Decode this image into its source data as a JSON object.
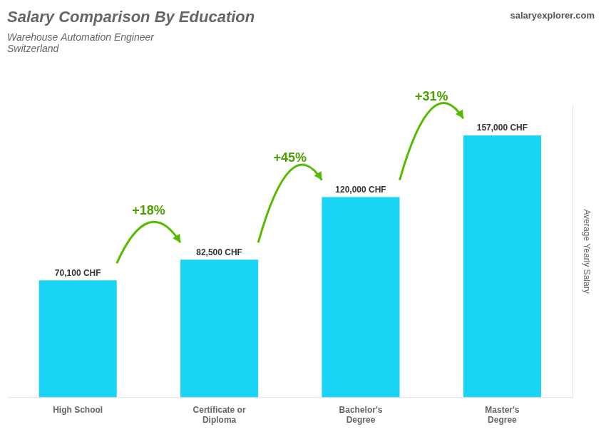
{
  "chart_data": {
    "type": "bar",
    "title": "Salary Comparison By Education",
    "subtitle": [
      "Warehouse Automation Engineer",
      "Switzerland"
    ],
    "source": "salaryexplorer.com",
    "ylabel": "Average Yearly Salary",
    "categories": [
      "High School",
      "Certificate or\nDiploma",
      "Bachelor's\nDegree",
      "Master's\nDegree"
    ],
    "values": [
      70100,
      82500,
      120000,
      157000
    ],
    "value_labels": [
      "70,100 CHF",
      "82,500 CHF",
      "120,000 CHF",
      "157,000 CHF"
    ],
    "data_labels": true,
    "annotations": [
      "+18%",
      "+45%",
      "+31%"
    ],
    "color": "#1ad4f5",
    "ylim": [
      0,
      175000
    ],
    "grid": false,
    "tick_labels": "x"
  }
}
